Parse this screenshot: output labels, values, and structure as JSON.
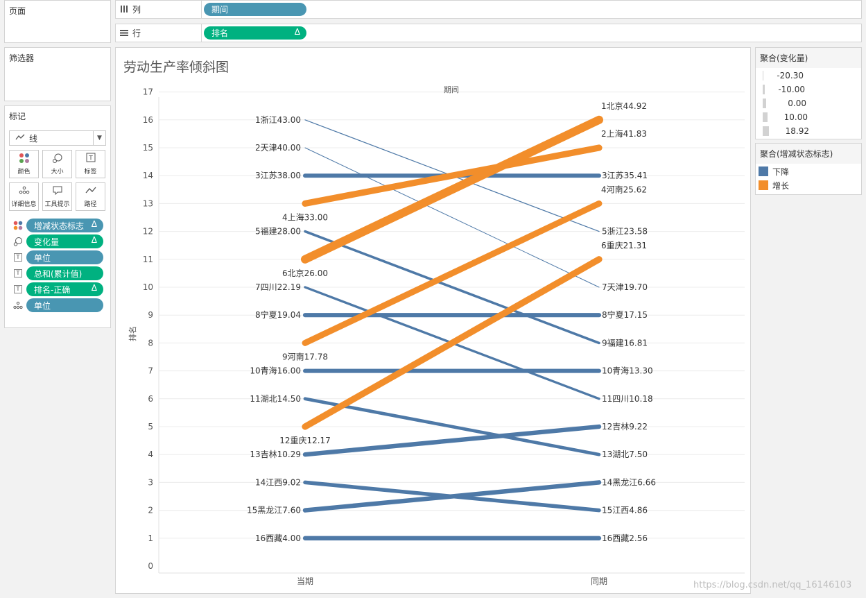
{
  "left_panel": {
    "pages_title": "页面",
    "filters_title": "筛选器",
    "marks_title": "标记",
    "mark_type": "线",
    "mark_type_icon": "line-chart-icon",
    "buttons": [
      {
        "label": "颜色",
        "icon": "color-dots-icon"
      },
      {
        "label": "大小",
        "icon": "size-icon"
      },
      {
        "label": "标签",
        "icon": "label-icon"
      },
      {
        "label": "详细信息",
        "icon": "detail-icon"
      },
      {
        "label": "工具提示",
        "icon": "tooltip-icon"
      },
      {
        "label": "路径",
        "icon": "path-icon"
      }
    ],
    "fields": [
      {
        "label": "增减状态标志",
        "icon": "color-dots-icon",
        "color": "#4996b2",
        "delta": "Δ"
      },
      {
        "label": "变化量",
        "icon": "size-icon",
        "color": "#00b180",
        "delta": "Δ"
      },
      {
        "label": "单位",
        "icon": "label-icon",
        "color": "#4996b2",
        "delta": ""
      },
      {
        "label": "总和(累计值)",
        "icon": "label-icon",
        "color": "#00b180",
        "delta": ""
      },
      {
        "label": "排名-正确",
        "icon": "label-icon",
        "color": "#00b180",
        "delta": "Δ"
      },
      {
        "label": "单位",
        "icon": "detail-icon",
        "color": "#4996b2",
        "delta": ""
      }
    ]
  },
  "shelves": {
    "columns_label": "列",
    "columns_pill": "期间",
    "rows_label": "行",
    "rows_pill": "排名",
    "rows_delta": "Δ"
  },
  "legends": {
    "size_title": "聚合(变化量)",
    "size_items": [
      "-20.30",
      "-10.00",
      "0.00",
      "10.00",
      "18.92"
    ],
    "color_title": "聚合(增减状态标志)",
    "color_items": [
      {
        "label": "下降",
        "color": "#4e79a7"
      },
      {
        "label": "增长",
        "color": "#f28e2b"
      }
    ]
  },
  "watermark": "https://blog.csdn.net/qq_16146103",
  "chart_data": {
    "type": "line",
    "title": "劳动生产率倾斜图",
    "xlabel": "期间",
    "ylabel": "排名",
    "categories": [
      "当期",
      "同期"
    ],
    "ylim": [
      0,
      17
    ],
    "yticks": [
      0,
      1,
      2,
      3,
      4,
      5,
      6,
      7,
      8,
      9,
      10,
      11,
      12,
      13,
      14,
      15,
      16,
      17
    ],
    "colors": {
      "下降": "#4e79a7",
      "增长": "#f28e2b"
    },
    "series": [
      {
        "name": "浙江",
        "status": "下降",
        "change": -19.42,
        "values": [
          16,
          12
        ],
        "labels": [
          "1浙江43.00",
          "5浙江23.58"
        ]
      },
      {
        "name": "天津",
        "status": "下降",
        "change": -20.3,
        "values": [
          15,
          10
        ],
        "labels": [
          "2天津40.00",
          "7天津19.70"
        ]
      },
      {
        "name": "江苏",
        "status": "下降",
        "change": -2.59,
        "values": [
          14,
          14
        ],
        "labels": [
          "3江苏38.00",
          "3江苏35.41"
        ]
      },
      {
        "name": "上海",
        "status": "增长",
        "change": 8.83,
        "values": [
          13,
          15
        ],
        "labels": [
          "4上海33.00",
          "2上海41.83"
        ]
      },
      {
        "name": "福建",
        "status": "下降",
        "change": -11.19,
        "values": [
          12,
          8
        ],
        "labels": [
          "5福建28.00",
          "9福建16.81"
        ]
      },
      {
        "name": "北京",
        "status": "增长",
        "change": 18.92,
        "values": [
          11,
          16
        ],
        "labels": [
          "6北京26.00",
          "1北京44.92"
        ]
      },
      {
        "name": "四川",
        "status": "下降",
        "change": -12.01,
        "values": [
          10,
          6
        ],
        "labels": [
          "7四川22.19",
          "11四川10.18"
        ]
      },
      {
        "name": "宁夏",
        "status": "下降",
        "change": -1.89,
        "values": [
          9,
          9
        ],
        "labels": [
          "8宁夏19.04",
          "8宁夏17.15"
        ]
      },
      {
        "name": "河南",
        "status": "增长",
        "change": 7.84,
        "values": [
          8,
          13
        ],
        "labels": [
          "9河南17.78",
          "4河南25.62"
        ]
      },
      {
        "name": "青海",
        "status": "下降",
        "change": -2.7,
        "values": [
          7,
          7
        ],
        "labels": [
          "10青海16.00",
          "10青海13.30"
        ]
      },
      {
        "name": "湖北",
        "status": "下降",
        "change": -7.0,
        "values": [
          6,
          4
        ],
        "labels": [
          "11湖北14.50",
          "13湖北7.50"
        ]
      },
      {
        "name": "重庆",
        "status": "增长",
        "change": 9.14,
        "values": [
          5,
          11
        ],
        "labels": [
          "12重庆12.17",
          "6重庆21.31"
        ]
      },
      {
        "name": "吉林",
        "status": "下降",
        "change": -1.07,
        "values": [
          4,
          5
        ],
        "labels": [
          "13吉林10.29",
          "12吉林9.22"
        ]
      },
      {
        "name": "江西",
        "status": "下降",
        "change": -4.16,
        "values": [
          3,
          2
        ],
        "labels": [
          "14江西9.02",
          "15江西4.86"
        ]
      },
      {
        "name": "黑龙江",
        "status": "下降",
        "change": -0.94,
        "values": [
          2,
          3
        ],
        "labels": [
          "15黑龙江7.60",
          "14黑龙江6.66"
        ]
      },
      {
        "name": "西藏",
        "status": "下降",
        "change": -1.44,
        "values": [
          1,
          1
        ],
        "labels": [
          "16西藏4.00",
          "16西藏2.56"
        ]
      }
    ]
  }
}
